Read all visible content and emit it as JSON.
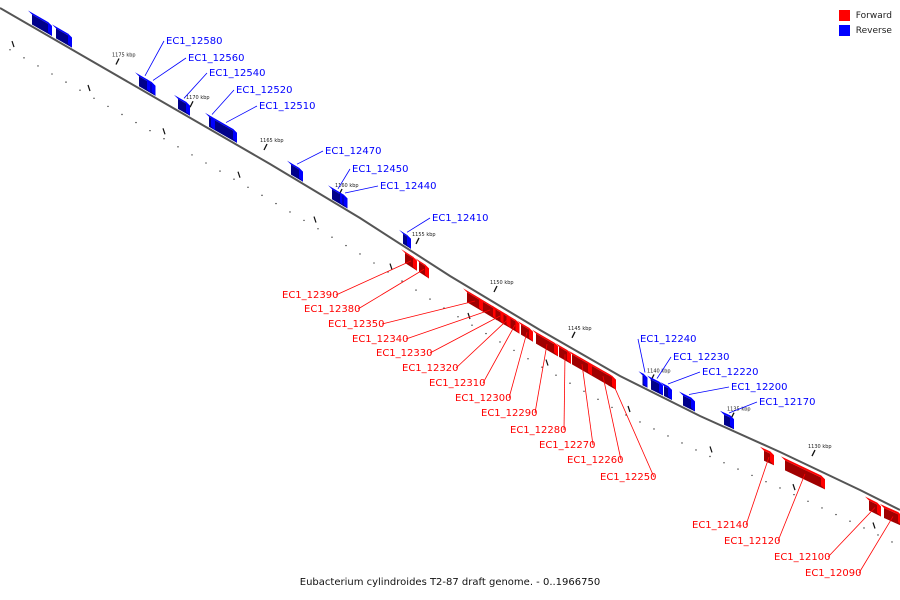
{
  "caption": "Eubacterium cylindroides T2-87 draft genome. - 0..1966750",
  "legend": [
    {
      "label": "Forward",
      "color": "#ff0000"
    },
    {
      "label": "Reverse",
      "color": "#0000ff"
    }
  ],
  "colors": {
    "forward": "#ff0000",
    "reverse": "#0000ff",
    "backbone": "#555555",
    "tick": "#111111"
  },
  "scale_ticks": [
    "1175 kbp",
    "1170 kbp",
    "1165 kbp",
    "1160 kbp",
    "1155 kbp",
    "1150 kbp",
    "1145 kbp",
    "1140 kbp",
    "1135 kbp",
    "1130 kbp"
  ],
  "genes": [
    {
      "label": "EC1_12580",
      "strand": "reverse"
    },
    {
      "label": "EC1_12560",
      "strand": "reverse"
    },
    {
      "label": "EC1_12540",
      "strand": "reverse"
    },
    {
      "label": "EC1_12520",
      "strand": "reverse"
    },
    {
      "label": "EC1_12510",
      "strand": "reverse"
    },
    {
      "label": "EC1_12470",
      "strand": "reverse"
    },
    {
      "label": "EC1_12450",
      "strand": "reverse"
    },
    {
      "label": "EC1_12440",
      "strand": "reverse"
    },
    {
      "label": "EC1_12410",
      "strand": "reverse"
    },
    {
      "label": "EC1_12390",
      "strand": "forward"
    },
    {
      "label": "EC1_12380",
      "strand": "forward"
    },
    {
      "label": "EC1_12350",
      "strand": "forward"
    },
    {
      "label": "EC1_12340",
      "strand": "forward"
    },
    {
      "label": "EC1_12330",
      "strand": "forward"
    },
    {
      "label": "EC1_12320",
      "strand": "forward"
    },
    {
      "label": "EC1_12310",
      "strand": "forward"
    },
    {
      "label": "EC1_12300",
      "strand": "forward"
    },
    {
      "label": "EC1_12290",
      "strand": "forward"
    },
    {
      "label": "EC1_12280",
      "strand": "forward"
    },
    {
      "label": "EC1_12270",
      "strand": "forward"
    },
    {
      "label": "EC1_12260",
      "strand": "forward"
    },
    {
      "label": "EC1_12250",
      "strand": "forward"
    },
    {
      "label": "EC1_12240",
      "strand": "reverse"
    },
    {
      "label": "EC1_12230",
      "strand": "reverse"
    },
    {
      "label": "EC1_12220",
      "strand": "reverse"
    },
    {
      "label": "EC1_12200",
      "strand": "reverse"
    },
    {
      "label": "EC1_12170",
      "strand": "reverse"
    },
    {
      "label": "EC1_12140",
      "strand": "forward"
    },
    {
      "label": "EC1_12120",
      "strand": "forward"
    },
    {
      "label": "EC1_12100",
      "strand": "forward"
    },
    {
      "label": "EC1_12090",
      "strand": "forward"
    }
  ]
}
